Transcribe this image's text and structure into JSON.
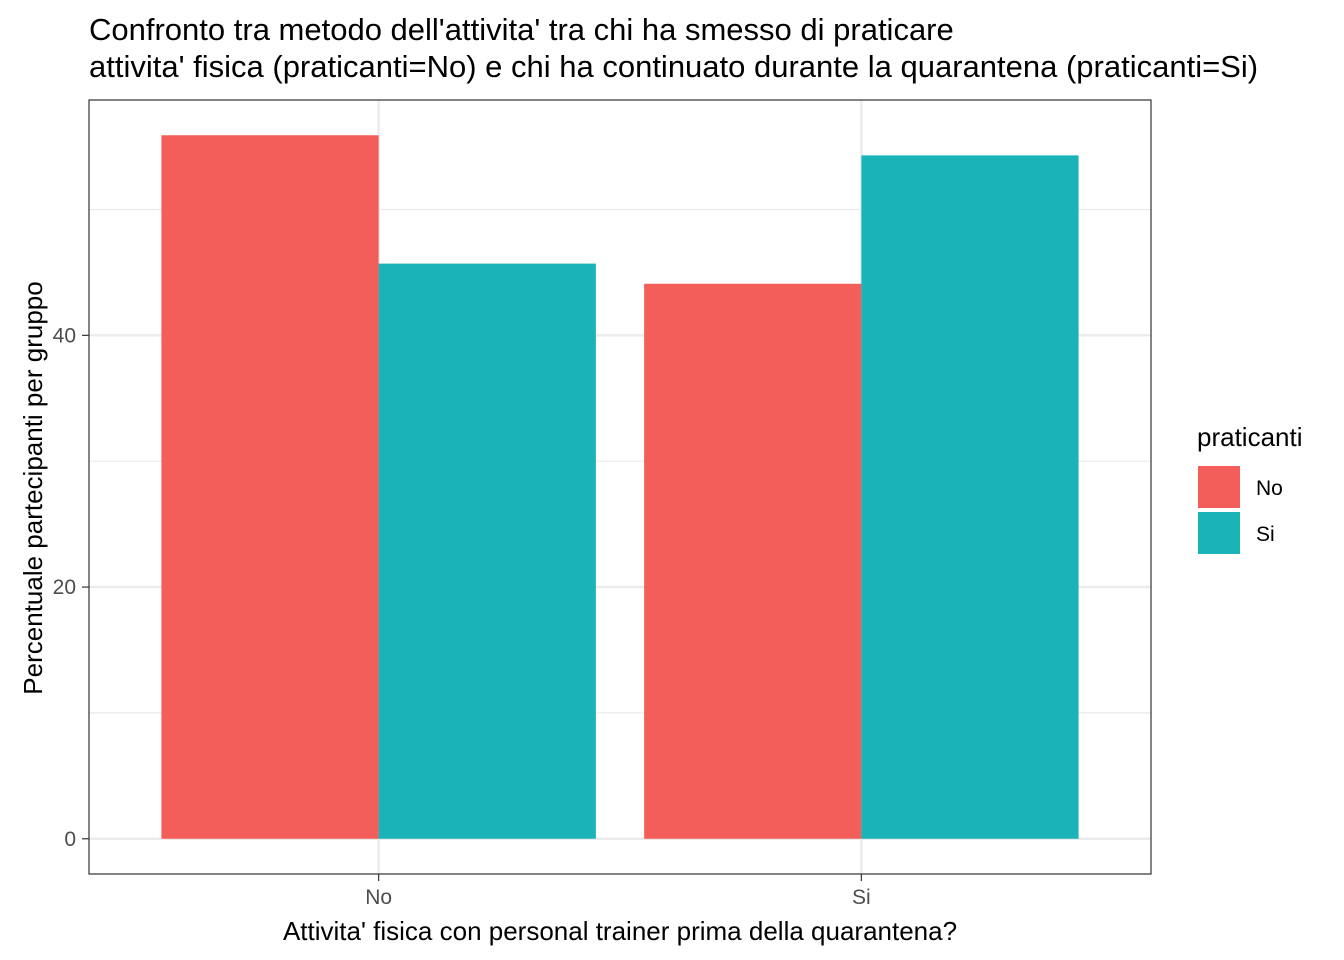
{
  "chart_data": {
    "type": "bar",
    "title": "Confronto tra metodo dell'attivita' tra chi ha smesso di praticare\nattivita' fisica (praticanti=No) e chi ha continuato durante la quarantena (praticanti=Si)",
    "title_lines": [
      "Confronto tra metodo dell'attivita' tra chi ha smesso di praticare",
      "attivita' fisica (praticanti=No) e chi ha continuato durante la quarantena (praticanti=Si)"
    ],
    "xlabel": "Attivita' fisica con personal trainer prima della quarantena?",
    "ylabel": "Percentuale partecipanti per gruppo",
    "categories": [
      "No",
      "Si"
    ],
    "series": [
      {
        "name": "No",
        "color": "#F35E5A",
        "values": [
          55.9,
          44.1
        ]
      },
      {
        "name": "Si",
        "color": "#19B3B8",
        "values": [
          45.7,
          54.3
        ]
      }
    ],
    "y_ticks": [
      0,
      20,
      40
    ],
    "ylim": [
      -2.8,
      58.7
    ],
    "grid": true,
    "legend": {
      "title": "praticanti",
      "position": "right"
    }
  }
}
